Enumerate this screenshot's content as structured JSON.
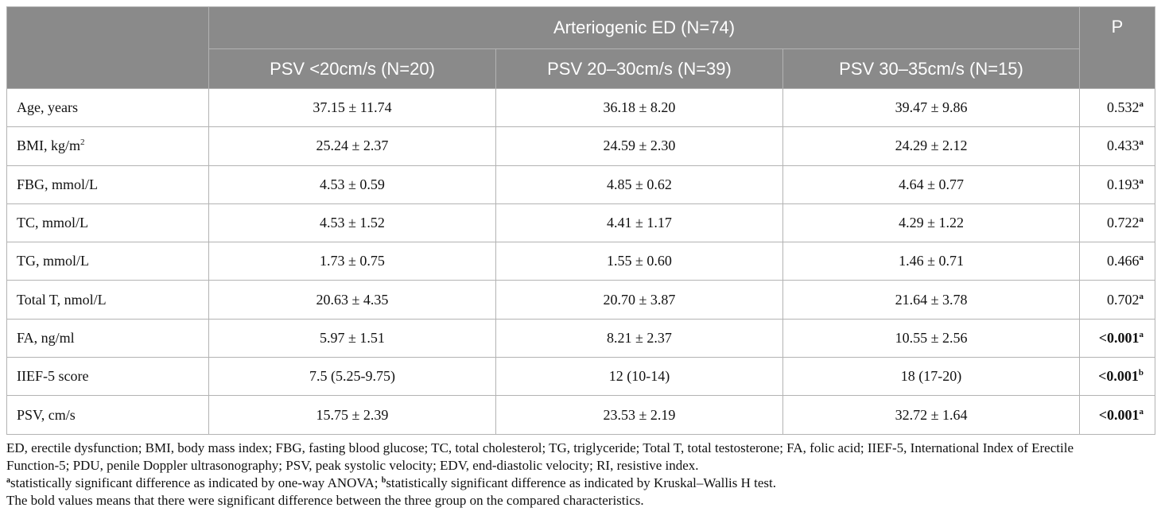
{
  "header": {
    "group": "Arteriogenic ED (N=74)",
    "p": "P",
    "columns": [
      "PSV <20cm/s (N=20)",
      "PSV 20–30cm/s (N=39)",
      "PSV 30–35cm/s (N=15)"
    ]
  },
  "rows": [
    {
      "label": "Age, years",
      "v1": "37.15 ± 11.74",
      "v2": "36.18 ± 8.20",
      "v3": "39.47 ± 9.86",
      "p": "0.532",
      "sup": "a",
      "bold": false
    },
    {
      "label": "BMI, kg/m",
      "label_sup": "2",
      "v1": "25.24 ± 2.37",
      "v2": "24.59 ± 2.30",
      "v3": "24.29 ± 2.12",
      "p": "0.433",
      "sup": "a",
      "bold": false
    },
    {
      "label": "FBG, mmol/L",
      "v1": "4.53 ± 0.59",
      "v2": "4.85 ± 0.62",
      "v3": "4.64 ± 0.77",
      "p": "0.193",
      "sup": "a",
      "bold": false
    },
    {
      "label": "TC, mmol/L",
      "v1": "4.53 ± 1.52",
      "v2": "4.41 ± 1.17",
      "v3": "4.29 ± 1.22",
      "p": "0.722",
      "sup": "a",
      "bold": false
    },
    {
      "label": "TG, mmol/L",
      "v1": "1.73 ± 0.75",
      "v2": "1.55 ± 0.60",
      "v3": "1.46 ± 0.71",
      "p": "0.466",
      "sup": "a",
      "bold": false
    },
    {
      "label": "Total T, nmol/L",
      "v1": "20.63 ± 4.35",
      "v2": "20.70 ± 3.87",
      "v3": "21.64 ± 3.78",
      "p": "0.702",
      "sup": "a",
      "bold": false
    },
    {
      "label": "FA, ng/ml",
      "v1": "5.97 ± 1.51",
      "v2": "8.21 ± 2.37",
      "v3": "10.55 ± 2.56",
      "p": "<0.001",
      "sup": "a",
      "bold": true
    },
    {
      "label": "IIEF-5 score",
      "v1": "7.5 (5.25-9.75)",
      "v2": "12 (10-14)",
      "v3": "18 (17-20)",
      "p": "<0.001",
      "sup": "b",
      "bold": true
    },
    {
      "label": "PSV, cm/s",
      "v1": "15.75 ± 2.39",
      "v2": "23.53 ± 2.19",
      "v3": "32.72 ± 1.64",
      "p": "<0.001",
      "sup": "a",
      "bold": true
    }
  ],
  "footnotes": {
    "abbrev_1": "ED, erectile dysfunction; BMI, body mass index; FBG, fasting blood glucose; TC, total cholesterol; TG, triglyceride; Total T, total testosterone; FA, folic acid; IIEF-5, International Index of Erectile",
    "abbrev_2": "Function-5; PDU, penile Doppler ultrasonography; PSV, peak systolic velocity; EDV, end-diastolic velocity; RI, resistive index.",
    "note_a_sup": "a",
    "note_a": "statistically significant difference as indicated by one-way ANOVA; ",
    "note_b_sup": "b",
    "note_b": "statistically significant difference as indicated by Kruskal–Wallis H test.",
    "bold_note": "The bold values means that there were significant difference between the three group on the compared characteristics."
  }
}
